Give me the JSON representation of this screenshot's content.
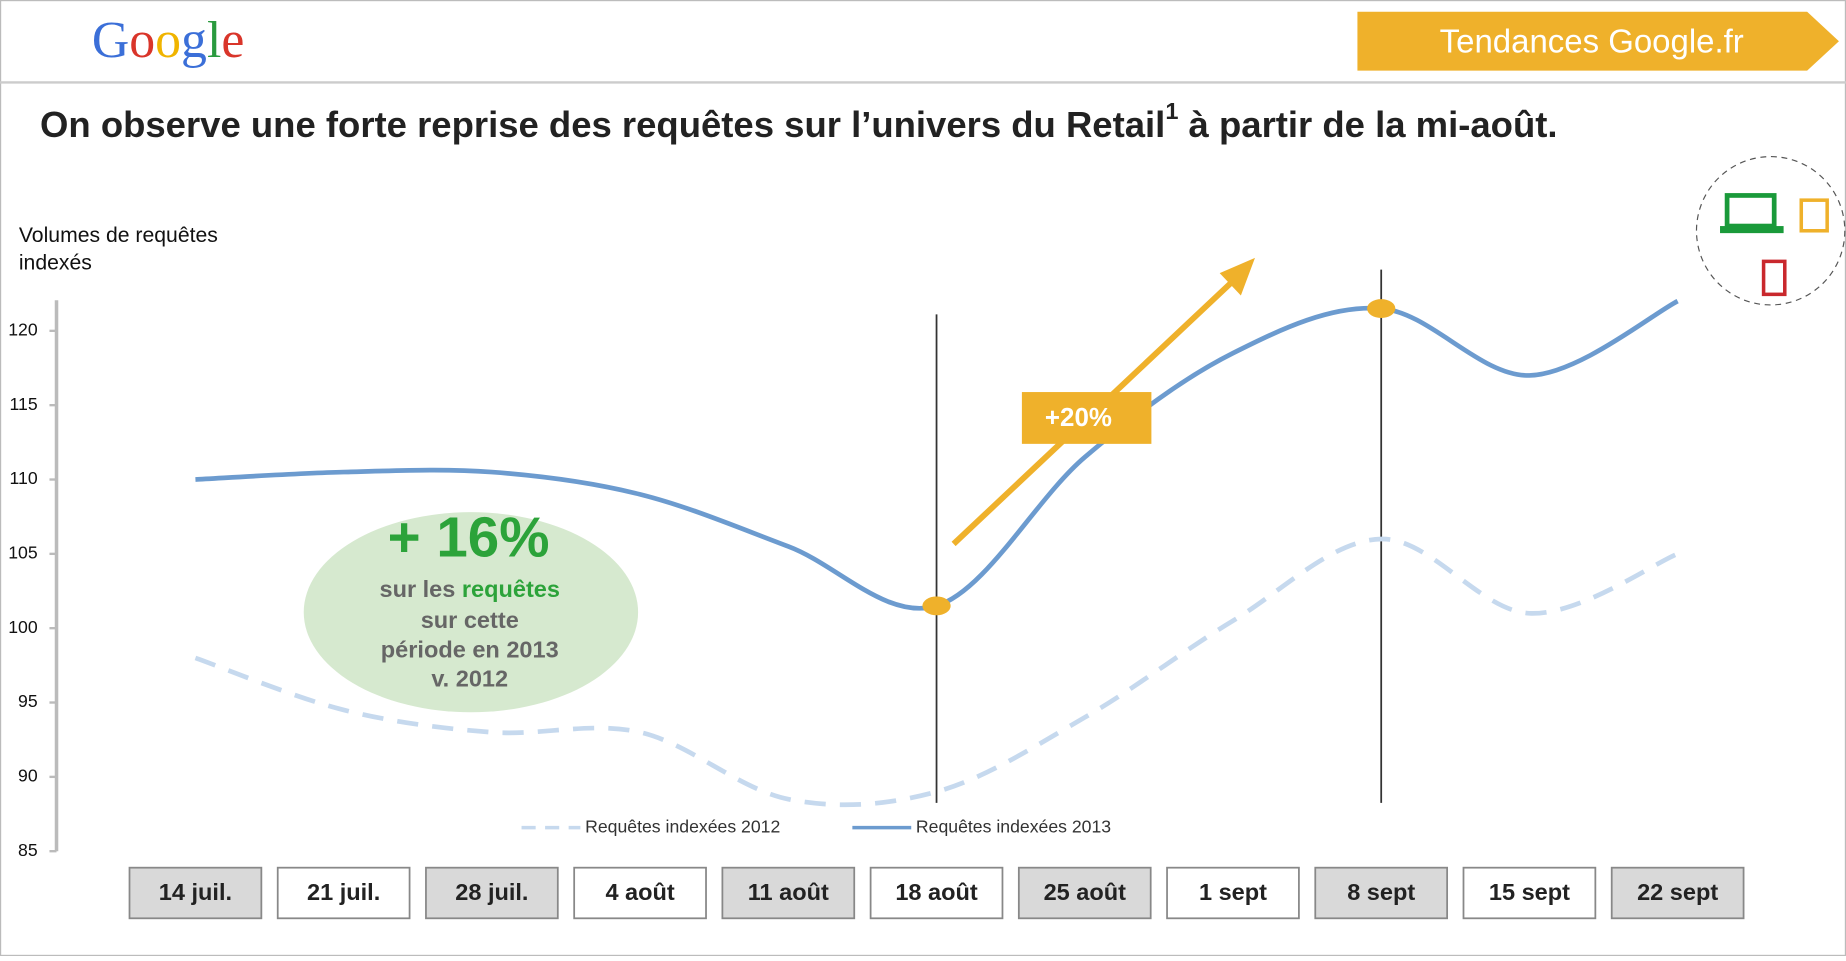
{
  "header": {
    "logo": "Google",
    "banner": "Tendances Google.fr"
  },
  "chart_data": {
    "type": "line",
    "title": "On observe une forte reprise des requêtes sur l’univers du Retail",
    "title_sup": "1",
    "title_end": " à partir de la mi-août.",
    "y_label_lines": [
      "Volumes de requêtes",
      "indexés"
    ],
    "categories": [
      "14 juil.",
      "21 juil.",
      "28 juil.",
      "4 août",
      "11 août",
      "18 août",
      "25 août",
      "1 sept",
      "8 sept",
      "15 sept",
      "22 sept"
    ],
    "series": [
      {
        "name": "Requêtes indexées 2012",
        "color": "#c6d9ee",
        "dashed": true,
        "values": [
          98,
          94.5,
          93,
          93,
          88.5,
          89,
          94,
          100.5,
          106,
          101,
          105
        ]
      },
      {
        "name": "Requêtes indexées 2013",
        "color": "#6c9bcf",
        "dashed": false,
        "values": [
          110,
          110.5,
          110.5,
          109,
          105.5,
          101.5,
          111.5,
          118.5,
          121.5,
          117,
          122
        ]
      }
    ],
    "ylim": [
      85,
      122
    ],
    "yticks": [
      85,
      90,
      95,
      100,
      105,
      110,
      115,
      120
    ],
    "annotations": {
      "arrow_label": "+20%",
      "big": "+ 16%",
      "l1a": "sur les ",
      "l1b": "requêtes",
      "l2": "sur cette",
      "l3": "période en 2013",
      "l4": "v. 2012"
    }
  }
}
